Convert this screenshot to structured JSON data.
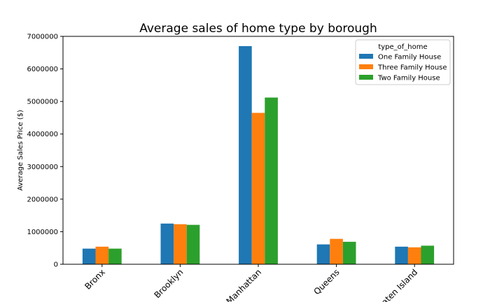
{
  "chart_data": {
    "type": "bar",
    "title": "Average sales of home type by borough",
    "xlabel": "",
    "ylabel": "Average Sales Price ($)",
    "categories": [
      "Bronx",
      "Brooklyn",
      "Manhattan",
      "Queens",
      "Staten Island"
    ],
    "series": [
      {
        "name": "One Family House",
        "color": "#1f77b4",
        "values": [
          480000,
          1250000,
          6700000,
          610000,
          540000
        ]
      },
      {
        "name": "Three Family House",
        "color": "#ff7f0e",
        "values": [
          540000,
          1230000,
          4650000,
          780000,
          520000
        ]
      },
      {
        "name": "Two Family House",
        "color": "#2ca02c",
        "values": [
          480000,
          1210000,
          5120000,
          690000,
          570000
        ]
      }
    ],
    "ylim": [
      0,
      7000000
    ],
    "yticks": [
      0,
      1000000,
      2000000,
      3000000,
      4000000,
      5000000,
      6000000,
      7000000
    ],
    "ytick_labels": [
      "0",
      "1000000",
      "2000000",
      "3000000",
      "4000000",
      "5000000",
      "6000000",
      "7000000"
    ],
    "legend": {
      "title": "type_of_home",
      "placement": "top-right"
    },
    "grid": false
  }
}
